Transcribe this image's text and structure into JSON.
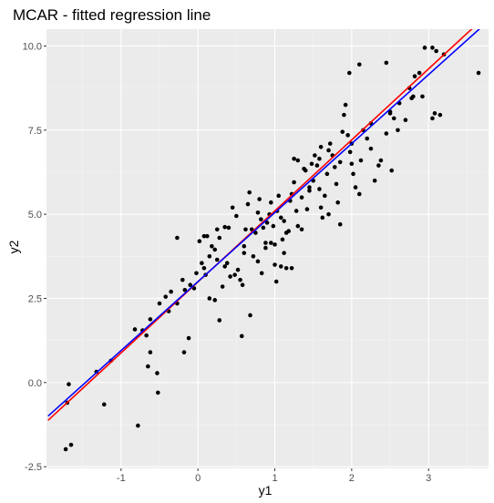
{
  "chart_data": {
    "type": "scatter",
    "title": "MCAR - fitted regression line",
    "xlabel": "y1",
    "ylabel": "y2",
    "xlim": [
      -1.97,
      3.78
    ],
    "ylim": [
      -2.55,
      10.5
    ],
    "x_ticks": [
      -1,
      0,
      1,
      2,
      3
    ],
    "x_tick_labels": [
      "-1",
      "0",
      "1",
      "2",
      "3"
    ],
    "y_ticks": [
      -2.5,
      0,
      2.5,
      5,
      7.5,
      10
    ],
    "y_tick_labels": [
      "-2.5",
      "0.0",
      "2.5",
      "5.0",
      "7.5",
      "10.0"
    ],
    "grid": true,
    "legend": "none",
    "colors": {
      "panel": "#ebebeb",
      "grid_major": "#ffffff",
      "grid_minor": "#f4f4f4",
      "points": "#000000",
      "line_red": "#ff0000",
      "line_blue": "#0000ff"
    },
    "lines": [
      {
        "color": "red",
        "intercept": 2.99,
        "slope": 2.11
      },
      {
        "color": "blue",
        "intercept": 3.0,
        "slope": 2.05
      }
    ],
    "points": [
      [
        -1.72,
        -1.98
      ],
      [
        -1.65,
        -1.85
      ],
      [
        -1.7,
        -0.6
      ],
      [
        -1.68,
        -0.05
      ],
      [
        -1.32,
        0.32
      ],
      [
        -1.22,
        -0.65
      ],
      [
        -1.13,
        0.65
      ],
      [
        -0.78,
        -1.28
      ],
      [
        -0.82,
        1.58
      ],
      [
        -0.72,
        1.55
      ],
      [
        -0.62,
        1.88
      ],
      [
        -0.67,
        1.4
      ],
      [
        -0.62,
        0.9
      ],
      [
        -0.65,
        0.48
      ],
      [
        -0.53,
        0.28
      ],
      [
        -0.52,
        -0.3
      ],
      [
        -0.5,
        2.35
      ],
      [
        -0.42,
        2.55
      ],
      [
        -0.38,
        2.12
      ],
      [
        -0.27,
        2.35
      ],
      [
        -0.27,
        4.3
      ],
      [
        -0.2,
        3.05
      ],
      [
        -0.17,
        2.75
      ],
      [
        -0.12,
        1.32
      ],
      [
        -0.18,
        0.9
      ],
      [
        -0.1,
        2.9
      ],
      [
        -0.05,
        2.8
      ],
      [
        -0.02,
        3.25
      ],
      [
        0.02,
        4.2
      ],
      [
        0.08,
        4.35
      ],
      [
        0.12,
        4.35
      ],
      [
        0.05,
        3.55
      ],
      [
        0.08,
        3.4
      ],
      [
        0.15,
        3.75
      ],
      [
        0.18,
        4.05
      ],
      [
        0.22,
        3.95
      ],
      [
        0.25,
        3.65
      ],
      [
        0.15,
        2.5
      ],
      [
        0.22,
        2.45
      ],
      [
        0.28,
        1.85
      ],
      [
        0.32,
        2.85
      ],
      [
        0.35,
        3.45
      ],
      [
        0.38,
        3.55
      ],
      [
        0.28,
        4.3
      ],
      [
        0.35,
        4.62
      ],
      [
        0.4,
        4.6
      ],
      [
        0.45,
        5.2
      ],
      [
        0.5,
        4.95
      ],
      [
        0.52,
        3.35
      ],
      [
        0.48,
        3.2
      ],
      [
        0.55,
        3.05
      ],
      [
        0.58,
        2.9
      ],
      [
        0.6,
        4.05
      ],
      [
        0.62,
        4.55
      ],
      [
        0.65,
        5.3
      ],
      [
        0.67,
        5.65
      ],
      [
        0.7,
        4.55
      ],
      [
        0.75,
        4.45
      ],
      [
        0.78,
        5.05
      ],
      [
        0.8,
        5.45
      ],
      [
        0.82,
        4.85
      ],
      [
        0.85,
        4.6
      ],
      [
        0.72,
        3.75
      ],
      [
        0.78,
        3.6
      ],
      [
        0.83,
        3.25
      ],
      [
        0.68,
        2.0
      ],
      [
        0.57,
        1.38
      ],
      [
        0.88,
        4.15
      ],
      [
        0.9,
        4.75
      ],
      [
        0.93,
        5.0
      ],
      [
        0.95,
        5.35
      ],
      [
        0.98,
        4.65
      ],
      [
        1.0,
        4.1
      ],
      [
        1.03,
        5.1
      ],
      [
        1.05,
        5.55
      ],
      [
        1.08,
        4.9
      ],
      [
        1.1,
        4.25
      ],
      [
        1.12,
        3.85
      ],
      [
        1.0,
        3.5
      ],
      [
        1.02,
        3.0
      ],
      [
        1.08,
        3.45
      ],
      [
        1.15,
        3.4
      ],
      [
        1.18,
        4.5
      ],
      [
        1.2,
        5.4
      ],
      [
        1.22,
        5.6
      ],
      [
        1.25,
        5.95
      ],
      [
        1.25,
        6.65
      ],
      [
        1.28,
        5.1
      ],
      [
        1.3,
        4.65
      ],
      [
        1.35,
        5.5
      ],
      [
        1.38,
        6.35
      ],
      [
        1.4,
        6.3
      ],
      [
        1.42,
        5.15
      ],
      [
        1.45,
        5.8
      ],
      [
        1.48,
        6.5
      ],
      [
        1.52,
        6.75
      ],
      [
        1.55,
        6.45
      ],
      [
        1.58,
        5.75
      ],
      [
        1.6,
        5.2
      ],
      [
        1.62,
        4.9
      ],
      [
        1.65,
        5.55
      ],
      [
        1.68,
        6.2
      ],
      [
        1.7,
        6.9
      ],
      [
        1.72,
        7.1
      ],
      [
        1.75,
        6.75
      ],
      [
        1.78,
        6.4
      ],
      [
        1.8,
        5.9
      ],
      [
        1.82,
        5.35
      ],
      [
        1.85,
        6.55
      ],
      [
        1.88,
        7.45
      ],
      [
        1.9,
        7.95
      ],
      [
        1.92,
        8.25
      ],
      [
        1.95,
        7.35
      ],
      [
        1.98,
        6.85
      ],
      [
        2.0,
        6.5
      ],
      [
        2.02,
        6.2
      ],
      [
        2.05,
        5.8
      ],
      [
        2.1,
        5.6
      ],
      [
        2.12,
        6.6
      ],
      [
        2.15,
        7.5
      ],
      [
        2.2,
        7.25
      ],
      [
        2.25,
        6.95
      ],
      [
        2.3,
        6.0
      ],
      [
        2.35,
        6.45
      ],
      [
        2.38,
        6.6
      ],
      [
        2.45,
        7.4
      ],
      [
        2.5,
        8.05
      ],
      [
        2.52,
        6.3
      ],
      [
        2.55,
        7.85
      ],
      [
        2.6,
        7.5
      ],
      [
        2.62,
        8.3
      ],
      [
        2.7,
        7.8
      ],
      [
        2.75,
        8.75
      ],
      [
        2.78,
        8.45
      ],
      [
        2.82,
        9.1
      ],
      [
        2.88,
        9.2
      ],
      [
        2.92,
        8.5
      ],
      [
        2.95,
        9.95
      ],
      [
        3.05,
        9.95
      ],
      [
        3.1,
        9.85
      ],
      [
        3.05,
        7.85
      ],
      [
        3.08,
        8.0
      ],
      [
        3.15,
        7.95
      ],
      [
        3.2,
        9.75
      ],
      [
        3.65,
        9.2
      ],
      [
        1.97,
        9.2
      ],
      [
        2.1,
        9.45
      ],
      [
        2.45,
        9.5
      ],
      [
        2.5,
        8.0
      ],
      [
        1.6,
        7.0
      ],
      [
        1.5,
        6.0
      ],
      [
        1.35,
        4.55
      ],
      [
        1.3,
        6.6
      ],
      [
        0.95,
        4.15
      ],
      [
        1.15,
        4.45
      ],
      [
        0.6,
        3.85
      ],
      [
        0.42,
        3.15
      ],
      [
        0.25,
        4.55
      ],
      [
        1.85,
        4.7
      ],
      [
        1.7,
        5.0
      ],
      [
        -0.35,
        2.7
      ],
      [
        0.1,
        3.2
      ],
      [
        1.22,
        3.4
      ],
      [
        1.58,
        6.65
      ],
      [
        1.45,
        5.7
      ],
      [
        2.0,
        7.1
      ],
      [
        2.25,
        7.7
      ],
      [
        2.8,
        8.5
      ],
      [
        0.88,
        4.0
      ],
      [
        1.12,
        4.8
      ]
    ]
  }
}
